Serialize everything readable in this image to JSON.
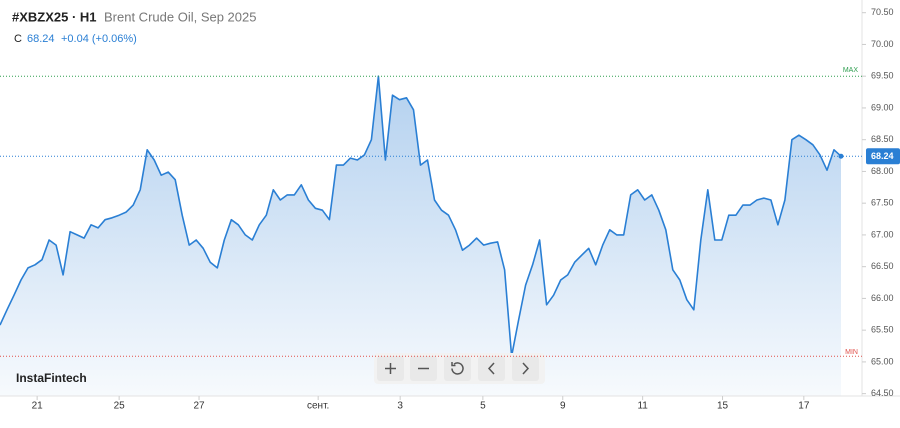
{
  "header": {
    "symbol": "#XBZX25 · H1",
    "instrument": "Brent Crude Oil, Sep 2025",
    "close_label": "C",
    "change": "+0.04 (+0.06%)"
  },
  "brand": "InstaFintech",
  "chart_data": {
    "type": "area",
    "color": "#2a7fd4",
    "values": [
      65.58,
      65.82,
      66.05,
      66.29,
      66.48,
      66.53,
      66.61,
      66.92,
      66.84,
      66.37,
      67.05,
      67.0,
      66.95,
      67.16,
      67.11,
      67.24,
      67.27,
      67.31,
      67.36,
      67.47,
      67.71,
      68.34,
      68.18,
      67.94,
      67.99,
      67.87,
      67.31,
      66.84,
      66.92,
      66.79,
      66.57,
      66.48,
      66.92,
      67.24,
      67.16,
      67.0,
      66.92,
      67.16,
      67.31,
      67.71,
      67.55,
      67.63,
      67.63,
      67.79,
      67.55,
      67.42,
      67.39,
      67.24,
      68.1,
      68.1,
      68.21,
      68.18,
      68.26,
      68.5,
      69.5,
      68.18,
      69.2,
      69.13,
      69.16,
      68.97,
      68.1,
      68.18,
      67.55,
      67.39,
      67.31,
      67.08,
      66.76,
      66.84,
      66.95,
      66.84,
      66.87,
      66.89,
      66.45,
      65.09,
      65.66,
      66.21,
      66.53,
      66.92,
      65.9,
      66.05,
      66.29,
      66.37,
      66.57,
      66.68,
      66.79,
      66.53,
      66.84,
      67.08,
      67.0,
      67.0,
      67.63,
      67.71,
      67.55,
      67.63,
      67.39,
      67.08,
      66.45,
      66.29,
      65.98,
      65.82,
      66.92,
      67.71,
      66.92,
      66.92,
      67.31,
      67.31,
      67.47,
      67.47,
      67.55,
      67.58,
      67.55,
      67.16,
      67.55,
      68.5,
      68.57,
      68.5,
      68.42,
      68.26,
      68.02,
      68.34,
      68.24
    ],
    "last_value": 68.24,
    "max": {
      "value": 69.5,
      "label": "MAX",
      "color": "#2e9e4f"
    },
    "min": {
      "value": 65.09,
      "label": "MIN",
      "color": "#e0504a"
    },
    "xlim": [
      0,
      123
    ],
    "xticks": [
      {
        "value": 5.3,
        "label": "21"
      },
      {
        "value": 17,
        "label": "25"
      },
      {
        "value": 28.4,
        "label": "27"
      },
      {
        "value": 45.4,
        "label": "сент."
      },
      {
        "value": 57.1,
        "label": "3"
      },
      {
        "value": 68.9,
        "label": "5"
      },
      {
        "value": 80.3,
        "label": "9"
      },
      {
        "value": 91.7,
        "label": "11"
      },
      {
        "value": 103.1,
        "label": "15"
      },
      {
        "value": 114.7,
        "label": "17"
      }
    ],
    "ylim": [
      64.4,
      70.7
    ],
    "yticks": [
      {
        "value": 64.5,
        "label": "64.50"
      },
      {
        "value": 65,
        "label": "65.00"
      },
      {
        "value": 65.5,
        "label": "65.50"
      },
      {
        "value": 66,
        "label": "66.00"
      },
      {
        "value": 66.5,
        "label": "66.50"
      },
      {
        "value": 67,
        "label": "67.00"
      },
      {
        "value": 67.5,
        "label": "67.50"
      },
      {
        "value": 68,
        "label": "68.00"
      },
      {
        "value": 68.5,
        "label": "68.50"
      },
      {
        "value": 69,
        "label": "69.00"
      },
      {
        "value": 69.5,
        "label": "69.50"
      },
      {
        "value": 70,
        "label": "70.00"
      },
      {
        "value": 70.5,
        "label": "70.50"
      }
    ]
  }
}
